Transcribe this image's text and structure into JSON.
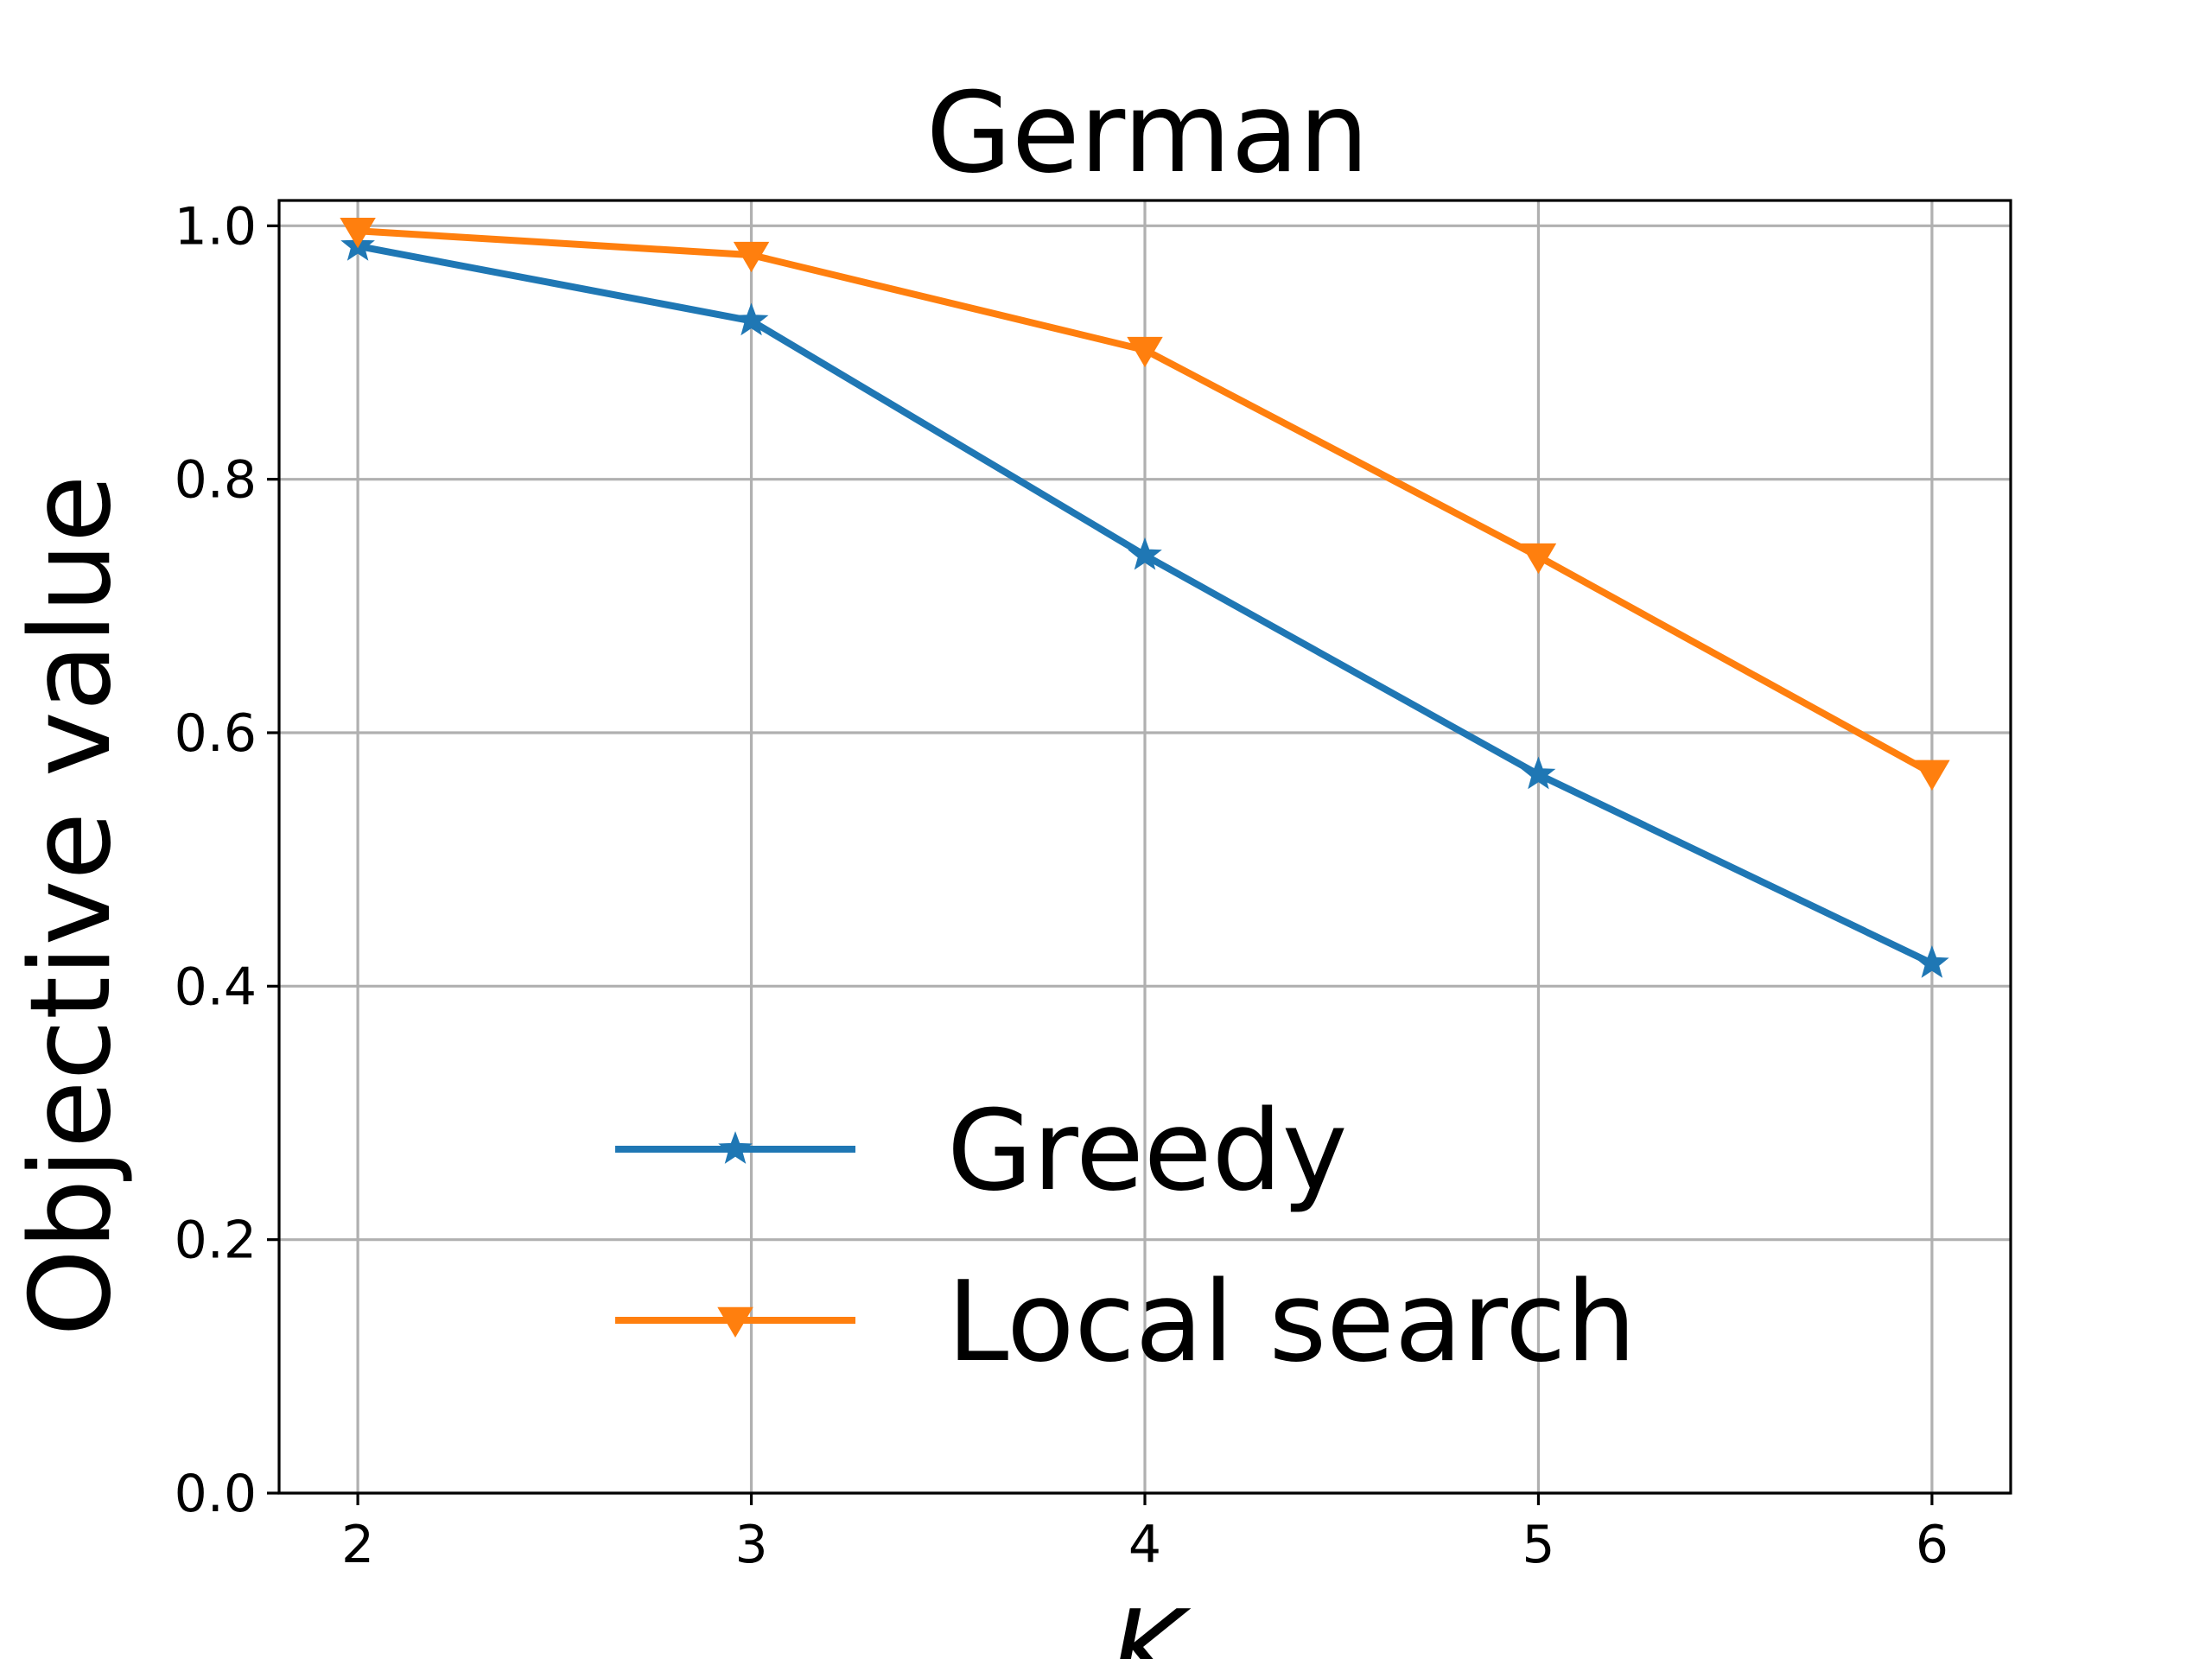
{
  "chart_data": {
    "type": "line",
    "title": "German",
    "xlabel": "K",
    "ylabel": "Objective value",
    "x": [
      2,
      3,
      4,
      5,
      6
    ],
    "xticks": [
      "2",
      "3",
      "4",
      "5",
      "6"
    ],
    "yticks": [
      "0.0",
      "0.2",
      "0.4",
      "0.6",
      "0.8",
      "1.0"
    ],
    "xlim": [
      1.8,
      6.2
    ],
    "ylim": [
      0.0,
      1.02
    ],
    "grid": true,
    "legend_position": "lower center",
    "series": [
      {
        "name": "Greedy",
        "marker": "star",
        "color": "#1f77b4",
        "values": [
          0.984,
          0.925,
          0.74,
          0.567,
          0.418
        ]
      },
      {
        "name": "Local search",
        "marker": "triangle-down",
        "color": "#ff7f0e",
        "values": [
          0.996,
          0.977,
          0.902,
          0.739,
          0.568
        ]
      }
    ]
  }
}
